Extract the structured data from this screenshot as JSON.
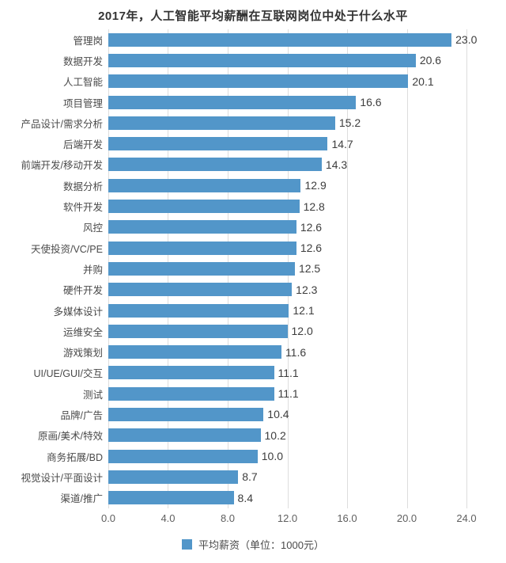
{
  "title": "2017年，人工智能平均薪酬在互联网岗位中处于什么水平",
  "colors": {
    "bar": "#5296c9",
    "grid": "#dddddd",
    "value_text": "#3d3d3d",
    "label_text": "#4a4a4a",
    "tick_text": "#5f5f5f",
    "title_text": "#333333",
    "background": "#ffffff"
  },
  "legend": {
    "label": "平均薪资（单位：1000元）",
    "swatch": "blue-square"
  },
  "chart_data": {
    "type": "bar",
    "orientation": "horizontal",
    "title": "2017年，人工智能平均薪酬在互联网岗位中处于什么水平",
    "categories": [
      "管理岗",
      "数据开发",
      "人工智能",
      "项目管理",
      "产品设计/需求分析",
      "后端开发",
      "前端开发/移动开发",
      "数据分析",
      "软件开发",
      "风控",
      "天使投资/VC/PE",
      "并购",
      "硬件开发",
      "多媒体设计",
      "运维安全",
      "游戏策划",
      "UI/UE/GUI/交互",
      "测试",
      "品牌/广告",
      "原画/美术/特效",
      "商务拓展/BD",
      "视觉设计/平面设计",
      "渠道/推广"
    ],
    "values": [
      23.0,
      20.6,
      20.1,
      16.6,
      15.2,
      14.7,
      14.3,
      12.9,
      12.8,
      12.6,
      12.6,
      12.5,
      12.3,
      12.1,
      12.0,
      11.6,
      11.1,
      11.1,
      10.4,
      10.2,
      10.0,
      8.7,
      8.4
    ],
    "xlabel": "",
    "ylabel": "",
    "xlim": [
      0,
      24
    ],
    "x_ticks": [
      "0.0",
      "4.0",
      "8.0",
      "12.0",
      "16.0",
      "20.0",
      "24.0"
    ],
    "grid": "vertical",
    "value_labels_shown": true,
    "legend_position": "bottom",
    "legend_label": "平均薪资（单位：1000元）"
  }
}
